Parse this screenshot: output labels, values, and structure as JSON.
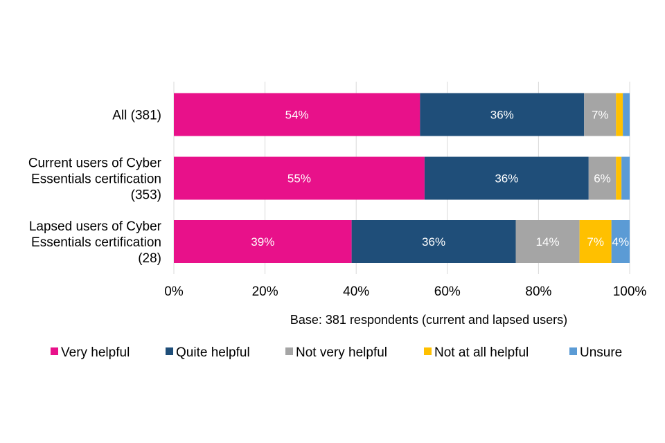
{
  "chart_data": {
    "type": "bar",
    "orientation": "horizontal",
    "stacked": true,
    "percent_stacked": true,
    "categories": [
      [
        "All (381)"
      ],
      [
        "Current users of Cyber",
        "Essentials certification",
        "(353)"
      ],
      [
        "Lapsed users of Cyber",
        "Essentials certification",
        "(28)"
      ]
    ],
    "series": [
      {
        "name": "Very helpful",
        "color": "#e8118a",
        "values": [
          54,
          55,
          39
        ],
        "labels": [
          "54%",
          "55%",
          "39%"
        ]
      },
      {
        "name": "Quite helpful",
        "color": "#1f4e79",
        "values": [
          36,
          36,
          36
        ],
        "labels": [
          "36%",
          "36%",
          "36%"
        ]
      },
      {
        "name": "Not very helpful",
        "color": "#a5a5a5",
        "values": [
          7,
          6,
          14
        ],
        "labels": [
          "7%",
          "6%",
          "14%"
        ]
      },
      {
        "name": "Not at all helpful",
        "color": "#ffc000",
        "values": [
          1.5,
          1.2,
          7
        ],
        "labels": [
          "",
          "",
          "7%"
        ]
      },
      {
        "name": "Unsure",
        "color": "#5b9bd5",
        "values": [
          1.5,
          1.8,
          4
        ],
        "labels": [
          "",
          "",
          "4%"
        ]
      }
    ],
    "xlim": [
      0,
      100
    ],
    "xticks": [
      "0%",
      "20%",
      "40%",
      "60%",
      "80%",
      "100%"
    ],
    "xlabel": "Base: 381 respondents (current and lapsed users)",
    "grid": true,
    "legend": "bottom"
  }
}
